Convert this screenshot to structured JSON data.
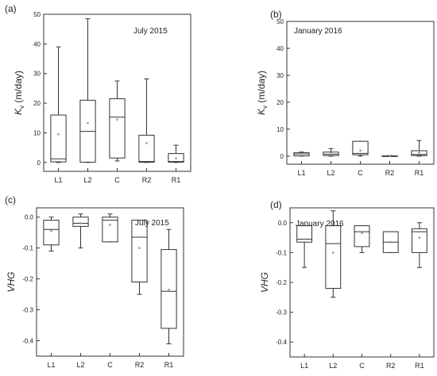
{
  "chart_data": [
    {
      "type": "box",
      "panel": "(a)",
      "annotation": "July 2015",
      "ylabel_main": "K",
      "ylabel_sub": "v",
      "ylabel_unit": " (m/day)",
      "ylim": [
        -3,
        50
      ],
      "yticks": [
        0,
        10,
        20,
        30,
        40,
        50
      ],
      "ytick_labels": [
        "0",
        "10",
        "20",
        "30",
        "40",
        "50"
      ],
      "categories": [
        "L1",
        "L2",
        "C",
        "R2",
        "R1"
      ],
      "boxes": [
        {
          "min": 0,
          "q1": 0.2,
          "median": 1.2,
          "q3": 16,
          "max": 39,
          "mean": 9.5
        },
        {
          "min": 0,
          "q1": 0.1,
          "median": 10.5,
          "q3": 21,
          "max": 48.5,
          "mean": 13.3
        },
        {
          "min": 0.5,
          "q1": 1.5,
          "median": 15.3,
          "q3": 21.5,
          "max": 27.5,
          "mean": 14.5
        },
        {
          "min": 0,
          "q1": 0.1,
          "median": 0.3,
          "q3": 9.2,
          "max": 28.2,
          "mean": 6.5
        },
        {
          "min": 0,
          "q1": 0.1,
          "median": 0.3,
          "q3": 3,
          "max": 5.8,
          "mean": 1.4
        }
      ]
    },
    {
      "type": "box",
      "panel": "(b)",
      "annotation": "January 2016",
      "ylabel_main": "K",
      "ylabel_sub": "v",
      "ylabel_unit": " (m/day)",
      "ylim": [
        -3,
        50
      ],
      "yticks": [
        0,
        10,
        20,
        30,
        40,
        50
      ],
      "ytick_labels": [
        "0",
        "10",
        "20",
        "30",
        "40",
        "50"
      ],
      "categories": [
        "L1",
        "L2",
        "C",
        "R2",
        "R1"
      ],
      "boxes": [
        {
          "min": 0,
          "q1": 0.1,
          "median": 0.8,
          "q3": 1.3,
          "max": 1.5,
          "mean": 0.8
        },
        {
          "min": 0,
          "q1": 0.2,
          "median": 0.7,
          "q3": 1.5,
          "max": 2.8,
          "mean": 0.9
        },
        {
          "min": 0,
          "q1": 0.5,
          "median": 1,
          "q3": 5.5,
          "max": 5.5,
          "mean": 2.1
        },
        {
          "min": 0,
          "q1": 0,
          "median": 0.1,
          "q3": 0.1,
          "max": 0.2,
          "mean": 0.1
        },
        {
          "min": 0,
          "q1": 0.2,
          "median": 0.6,
          "q3": 2,
          "max": 5.8,
          "mean": 1.3
        }
      ]
    },
    {
      "type": "box",
      "panel": "(c)",
      "annotation": "July 2015",
      "ylabel_main": "VHG",
      "ylabel_sub": "",
      "ylabel_unit": "",
      "ylim": [
        -0.45,
        0.03
      ],
      "yticks": [
        0,
        -0.1,
        -0.2,
        -0.3,
        -0.4
      ],
      "ytick_labels": [
        "0.0",
        "-0.1",
        "-0.2",
        "-0.3",
        "-0.4"
      ],
      "categories": [
        "L1",
        "L2",
        "C",
        "R2",
        "R1"
      ],
      "boxes": [
        {
          "min": -0.11,
          "q1": -0.09,
          "median": -0.04,
          "q3": -0.01,
          "max": 0,
          "mean": -0.045
        },
        {
          "min": -0.1,
          "q1": -0.03,
          "median": -0.02,
          "q3": 0,
          "max": 0.01,
          "mean": -0.02
        },
        {
          "min": -0.08,
          "q1": -0.08,
          "median": -0.01,
          "q3": 0,
          "max": 0.01,
          "mean": -0.025
        },
        {
          "min": -0.25,
          "q1": -0.21,
          "median": -0.065,
          "q3": -0.01,
          "max": -0.01,
          "mean": -0.1
        },
        {
          "min": -0.41,
          "q1": -0.36,
          "median": -0.24,
          "q3": -0.105,
          "max": -0.04,
          "mean": -0.235
        }
      ]
    },
    {
      "type": "box",
      "panel": "(d)",
      "annotation": "January 2016",
      "ylabel_main": "VHG",
      "ylabel_sub": "",
      "ylabel_unit": "",
      "ylim": [
        -0.45,
        0.05
      ],
      "yticks": [
        0,
        -0.1,
        -0.2,
        -0.3,
        -0.4
      ],
      "ytick_labels": [
        "0.0",
        "-0.1",
        "-0.2",
        "-0.3",
        "-0.4"
      ],
      "categories": [
        "L1",
        "L2",
        "C",
        "R2",
        "R1"
      ],
      "boxes": [
        {
          "min": -0.15,
          "q1": -0.065,
          "median": -0.055,
          "q3": -0.01,
          "max": -0.01,
          "mean": -0.055
        },
        {
          "min": -0.25,
          "q1": -0.22,
          "median": -0.07,
          "q3": -0.01,
          "max": 0.04,
          "mean": -0.1
        },
        {
          "min": -0.1,
          "q1": -0.08,
          "median": -0.03,
          "q3": -0.01,
          "max": -0.01,
          "mean": -0.035
        },
        {
          "min": -0.1,
          "q1": -0.1,
          "median": -0.065,
          "q3": -0.03,
          "max": -0.03,
          "mean": -0.065
        },
        {
          "min": -0.15,
          "q1": -0.1,
          "median": -0.03,
          "q3": -0.02,
          "max": 0,
          "mean": -0.05
        }
      ]
    }
  ],
  "colors": {
    "axis": "#333333",
    "box": "#333333",
    "mean": "#999999"
  }
}
